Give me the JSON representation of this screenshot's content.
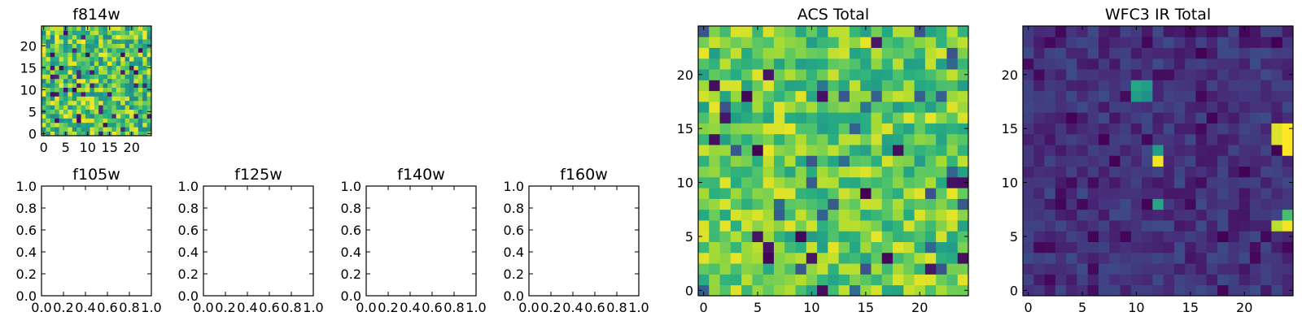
{
  "chart_data": [
    {
      "id": "f814w",
      "type": "heatmap",
      "title": "f814w",
      "xlabel": "",
      "ylabel": "",
      "xlim": [
        -0.5,
        24.5
      ],
      "ylim": [
        -0.5,
        24.5
      ],
      "x_ticks": [
        0,
        5,
        10,
        15,
        20
      ],
      "y_ticks": [
        0,
        5,
        10,
        15,
        20
      ],
      "colormap": "viridis",
      "value_range": [
        0,
        1
      ],
      "grid_size": 25,
      "matrix_source": "f814w"
    },
    {
      "id": "f105w",
      "type": "heatmap",
      "title": "f105w",
      "xlabel": "",
      "ylabel": "",
      "xlim": [
        0.0,
        1.0
      ],
      "ylim": [
        0.0,
        1.0
      ],
      "x_ticks": [
        "0.0",
        "0.2",
        "0.4",
        "0.6",
        "0.8",
        "1.0"
      ],
      "y_ticks": [
        "0.0",
        "0.2",
        "0.4",
        "0.6",
        "0.8",
        "1.0"
      ],
      "empty": true
    },
    {
      "id": "f125w",
      "type": "heatmap",
      "title": "f125w",
      "xlabel": "",
      "ylabel": "",
      "xlim": [
        0.0,
        1.0
      ],
      "ylim": [
        0.0,
        1.0
      ],
      "x_ticks": [
        "0.0",
        "0.2",
        "0.4",
        "0.6",
        "0.8",
        "1.0"
      ],
      "y_ticks": [
        "0.0",
        "0.2",
        "0.4",
        "0.6",
        "0.8",
        "1.0"
      ],
      "empty": true
    },
    {
      "id": "f140w",
      "type": "heatmap",
      "title": "f140w",
      "xlabel": "",
      "ylabel": "",
      "xlim": [
        0.0,
        1.0
      ],
      "ylim": [
        0.0,
        1.0
      ],
      "x_ticks": [
        "0.0",
        "0.2",
        "0.4",
        "0.6",
        "0.8",
        "1.0"
      ],
      "y_ticks": [
        "0.0",
        "0.2",
        "0.4",
        "0.6",
        "0.8",
        "1.0"
      ],
      "empty": true
    },
    {
      "id": "f160w",
      "type": "heatmap",
      "title": "f160w",
      "xlabel": "",
      "ylabel": "",
      "xlim": [
        0.0,
        1.0
      ],
      "ylim": [
        0.0,
        1.0
      ],
      "x_ticks": [
        "0.0",
        "0.2",
        "0.4",
        "0.6",
        "0.8",
        "1.0"
      ],
      "y_ticks": [
        "0.0",
        "0.2",
        "0.4",
        "0.6",
        "0.8",
        "1.0"
      ],
      "empty": true
    },
    {
      "id": "acs-total",
      "type": "heatmap",
      "title": "ACS Total",
      "xlabel": "",
      "ylabel": "",
      "xlim": [
        -0.5,
        24.5
      ],
      "ylim": [
        -0.5,
        24.5
      ],
      "x_ticks": [
        0,
        5,
        10,
        15,
        20
      ],
      "y_ticks": [
        0,
        5,
        10,
        15,
        20
      ],
      "colormap": "viridis",
      "value_range": [
        0,
        1
      ],
      "grid_size": 25,
      "matrix_source": "acs"
    },
    {
      "id": "wfc3-ir-total",
      "type": "heatmap",
      "title": "WFC3 IR Total",
      "xlabel": "",
      "ylabel": "",
      "xlim": [
        -0.5,
        24.5
      ],
      "ylim": [
        -0.5,
        24.5
      ],
      "x_ticks": [
        0,
        5,
        10,
        15,
        20
      ],
      "y_ticks": [
        0,
        5,
        10,
        15,
        20
      ],
      "colormap": "viridis",
      "value_range": [
        0,
        1
      ],
      "grid_size": 25,
      "matrix_source": "wfc3"
    }
  ],
  "colors": {
    "viridis": [
      "#440154",
      "#472c7a",
      "#3b518b",
      "#2c718e",
      "#21908d",
      "#27ad81",
      "#5cc863",
      "#aadc32",
      "#fde725"
    ],
    "axes": "#000000",
    "background": "#ffffff"
  }
}
